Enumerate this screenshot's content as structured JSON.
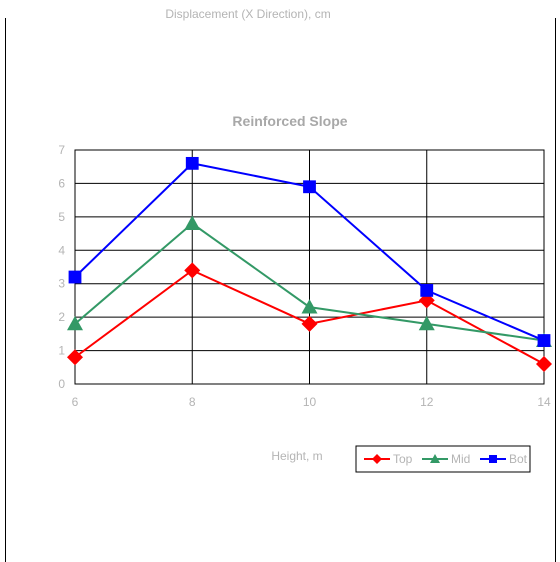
{
  "chart_data": {
    "type": "line",
    "title": "Reinforced Slope",
    "ylabel": "Displacement (X Direction), cm",
    "xlabel": "Height, m",
    "xlim": [
      6,
      14
    ],
    "ylim": [
      0,
      7
    ],
    "x_ticks": [
      6,
      8,
      10,
      12,
      14
    ],
    "y_ticks": [
      0,
      1,
      2,
      3,
      4,
      5,
      6,
      7
    ],
    "grid": true,
    "legend_position": "bottom-right",
    "series": [
      {
        "name": "Top",
        "color": "#ff0000",
        "marker": "diamond",
        "x": [
          6,
          8,
          10,
          12,
          14
        ],
        "y": [
          0.8,
          3.4,
          1.8,
          2.5,
          0.6
        ]
      },
      {
        "name": "Mid",
        "color": "#339966",
        "marker": "triangle",
        "x": [
          6,
          8,
          10,
          12,
          14
        ],
        "y": [
          1.8,
          4.8,
          2.3,
          1.8,
          1.3
        ]
      },
      {
        "name": "Bot",
        "color": "#0000ff",
        "marker": "square",
        "x": [
          6,
          8,
          10,
          12,
          14
        ],
        "y": [
          3.2,
          6.6,
          5.9,
          2.8,
          1.3
        ]
      }
    ]
  }
}
